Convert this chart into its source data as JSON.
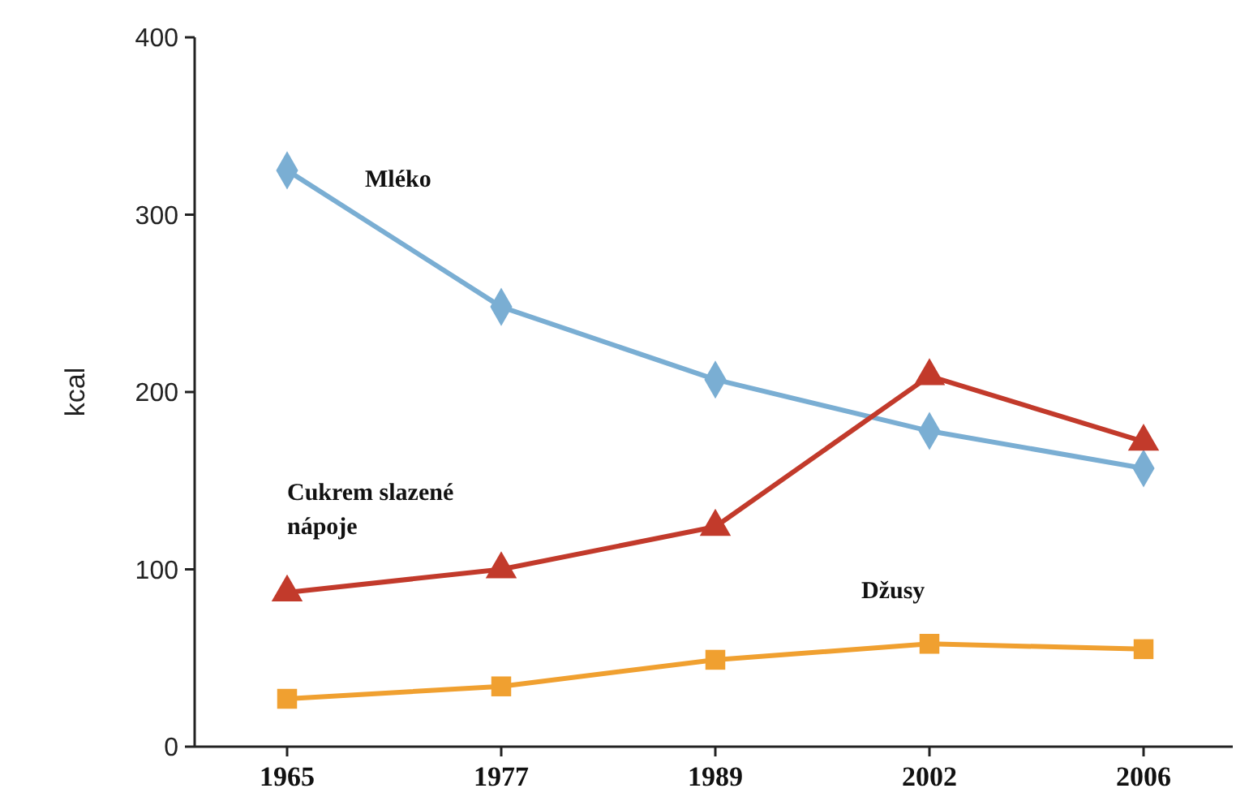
{
  "chart_data": {
    "type": "line",
    "ylabel": "kcal",
    "categories": [
      "1965",
      "1977",
      "1989",
      "2002",
      "2006"
    ],
    "ylim": [
      0,
      400
    ],
    "yticks": [
      0,
      100,
      200,
      300,
      400
    ],
    "series": [
      {
        "name": "Mléko",
        "color": "#7aaed3",
        "marker": "diamond",
        "values": [
          325,
          248,
          207,
          178,
          157
        ]
      },
      {
        "name": "Cukrem slazené nápoje",
        "color": "#c23a2b",
        "marker": "triangle",
        "values": [
          87,
          100,
          124,
          209,
          172
        ]
      },
      {
        "name": "Džusy",
        "color": "#f0a030",
        "marker": "square",
        "values": [
          27,
          34,
          49,
          58,
          55
        ]
      }
    ]
  }
}
